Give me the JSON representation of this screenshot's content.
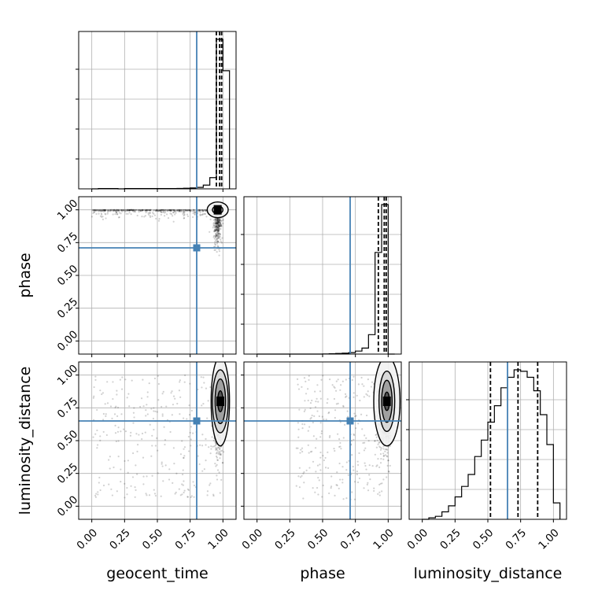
{
  "chart_data": {
    "type": "scatter",
    "plot_kind": "corner plot",
    "parameters": [
      "geocent_time",
      "phase",
      "luminosity_distance"
    ],
    "axis_range": [
      -0.1,
      1.1
    ],
    "tick_labels": [
      "0.00",
      "0.25",
      "0.50",
      "0.75",
      "1.00"
    ],
    "tick_values": [
      0,
      0.25,
      0.5,
      0.75,
      1.0
    ],
    "grid": true,
    "truth": {
      "geocent_time": 0.8,
      "phase": 0.71,
      "luminosity_distance": 0.65
    },
    "truth_color": "#4682b4",
    "quantiles": {
      "geocent_time": [
        0.95,
        0.975,
        0.99
      ],
      "phase": [
        0.925,
        0.97,
        0.985
      ],
      "luminosity_distance": [
        0.52,
        0.73,
        0.88
      ]
    },
    "histograms": {
      "geocent_time": {
        "bins": [
          0,
          0.05,
          0.1,
          0.15,
          0.2,
          0.25,
          0.3,
          0.35,
          0.4,
          0.45,
          0.5,
          0.55,
          0.6,
          0.65,
          0.7,
          0.75,
          0.8,
          0.85,
          0.9,
          0.95,
          1.0,
          1.05
        ],
        "counts": [
          0,
          2,
          2,
          2,
          0,
          2,
          2,
          2,
          2,
          2,
          2,
          2,
          2,
          3,
          4,
          6,
          10,
          25,
          75,
          1000,
          790
        ]
      },
      "phase": {
        "bins": [
          0,
          0.05,
          0.1,
          0.15,
          0.2,
          0.25,
          0.3,
          0.35,
          0.4,
          0.45,
          0.5,
          0.55,
          0.6,
          0.65,
          0.7,
          0.75,
          0.8,
          0.85,
          0.9,
          0.95,
          1.0,
          1.05
        ],
        "counts": [
          0,
          0,
          0,
          0,
          0,
          0,
          0,
          0,
          0,
          0,
          1,
          2,
          4,
          6,
          10,
          20,
          40,
          130,
          680,
          1000,
          0
        ]
      },
      "luminosity_distance": {
        "bins": [
          0,
          0.05,
          0.1,
          0.15,
          0.2,
          0.25,
          0.3,
          0.35,
          0.4,
          0.45,
          0.5,
          0.55,
          0.6,
          0.65,
          0.7,
          0.75,
          0.8,
          0.85,
          0.9,
          0.95,
          1.0,
          1.05
        ],
        "counts": [
          0,
          10,
          20,
          50,
          90,
          150,
          220,
          300,
          420,
          530,
          650,
          760,
          880,
          950,
          1000,
          990,
          950,
          860,
          700,
          500,
          110
        ]
      }
    },
    "contours": {
      "geocent_time_vs_phase": {
        "center": [
          0.96,
          1.0
        ],
        "radii": [
          [
            0.04,
            0.03
          ],
          [
            0.08,
            0.06
          ]
        ]
      },
      "geocent_time_vs_luminosity_distance": {
        "center": [
          0.98,
          0.8
        ],
        "radii": [
          [
            0.02,
            0.08
          ],
          [
            0.04,
            0.17
          ],
          [
            0.06,
            0.24
          ],
          [
            0.07,
            0.34
          ]
        ]
      },
      "phase_vs_luminosity_distance": {
        "center": [
          0.99,
          0.8
        ],
        "radii": [
          [
            0.02,
            0.07
          ],
          [
            0.04,
            0.16
          ],
          [
            0.06,
            0.23
          ],
          [
            0.1,
            0.34
          ]
        ]
      }
    }
  }
}
